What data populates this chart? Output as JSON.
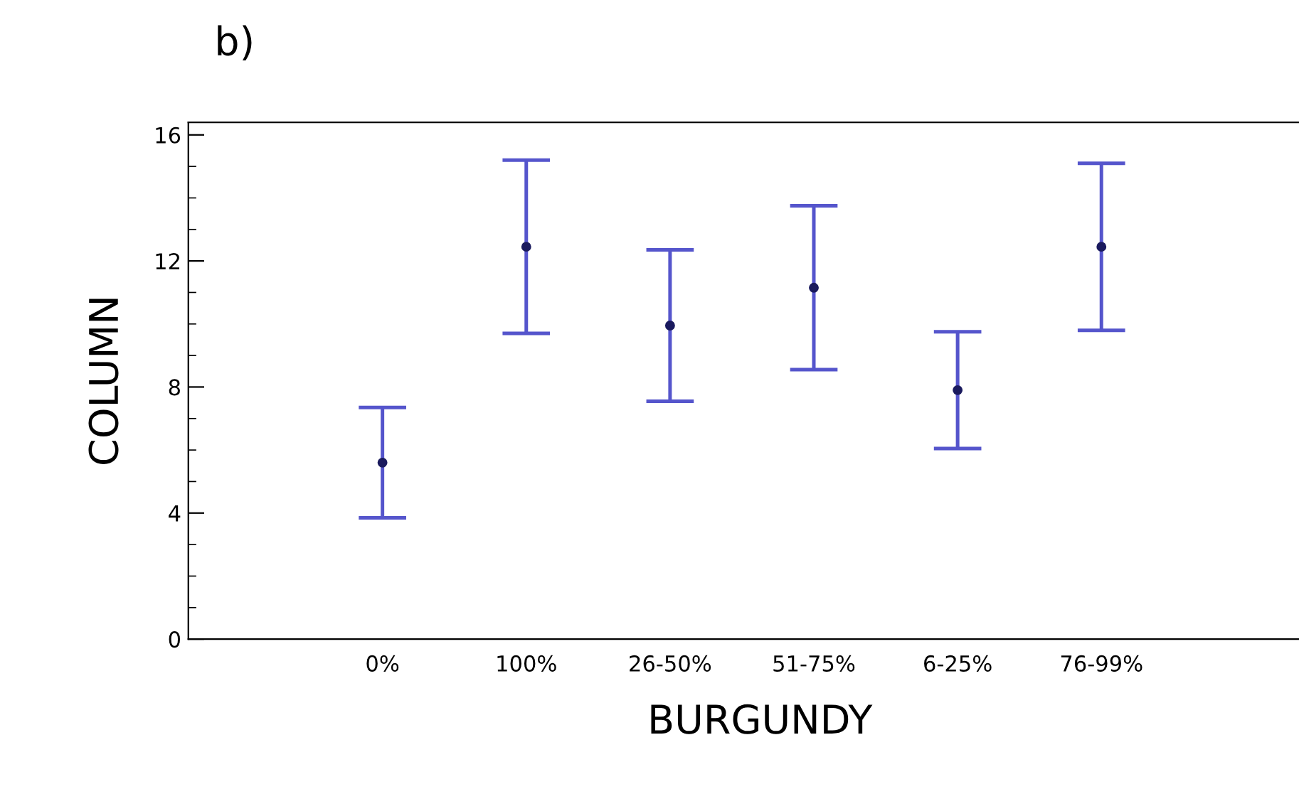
{
  "chart_data": {
    "type": "scatter",
    "title": "b)",
    "xlabel": "BURGUNDY",
    "ylabel": "COLUMN",
    "categories": [
      "0%",
      "100%",
      "26-50%",
      "51-75%",
      "6-25%",
      "76-99%"
    ],
    "values": [
      5.6,
      12.45,
      9.95,
      11.15,
      7.9,
      12.45
    ],
    "errors": [
      1.75,
      2.75,
      2.4,
      2.6,
      1.85,
      2.65
    ],
    "color": "#1a1a5e",
    "marker": "circle",
    "ylim": [
      0,
      16.4
    ],
    "yticks": [
      0,
      4,
      8,
      12,
      16
    ],
    "grid": false,
    "legend": false
  }
}
